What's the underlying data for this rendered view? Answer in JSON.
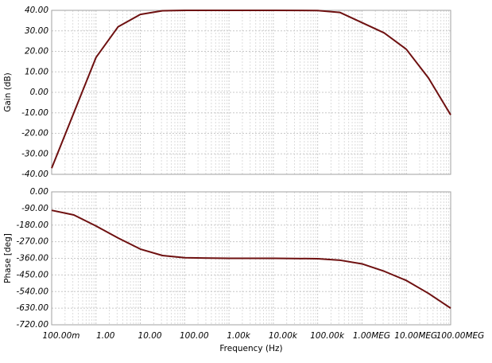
{
  "chart_data": [
    {
      "type": "line",
      "ylabel": "Gain (dB)",
      "xscale": "log",
      "grid": true,
      "x": [
        0.1,
        0.316,
        1,
        3.16,
        10,
        31.6,
        100,
        1000,
        10000,
        100000,
        316000,
        1000000,
        3160000,
        10000000,
        31600000,
        100000000
      ],
      "series": [
        {
          "color": "#6e1010",
          "values": [
            -37,
            -10,
            17,
            32,
            38,
            39.8,
            40,
            40,
            40,
            39.9,
            39,
            34,
            29,
            21,
            7,
            -11
          ]
        }
      ],
      "xlim": [
        0.1,
        100000000
      ],
      "xticks": [
        0.1,
        1,
        10,
        100,
        1000,
        10000,
        100000,
        1000000,
        10000000,
        100000000
      ],
      "ylim": [
        -40,
        40
      ],
      "yticks": [
        {
          "value": -40,
          "label": "-40.00"
        },
        {
          "value": -30,
          "label": "-30.00"
        },
        {
          "value": -20,
          "label": "-20.00"
        },
        {
          "value": -10,
          "label": "-10.00"
        },
        {
          "value": 0,
          "label": "0.00"
        },
        {
          "value": 10,
          "label": "10.00"
        },
        {
          "value": 20,
          "label": "20.00"
        },
        {
          "value": 30,
          "label": "30.00"
        },
        {
          "value": 40,
          "label": "40.00"
        }
      ]
    },
    {
      "type": "line",
      "ylabel": "Phase [deg]",
      "xlabel": "Frequency (Hz)",
      "xscale": "log",
      "grid": true,
      "x": [
        0.1,
        0.316,
        1,
        3.16,
        10,
        31.6,
        100,
        1000,
        10000,
        100000,
        316000,
        1000000,
        3160000,
        10000000,
        31600000,
        100000000
      ],
      "series": [
        {
          "color": "#6e1010",
          "values": [
            -100,
            -125,
            -185,
            -250,
            -310,
            -345,
            -357,
            -360,
            -360,
            -362,
            -370,
            -390,
            -430,
            -480,
            -550,
            -630
          ]
        }
      ],
      "xlim": [
        0.1,
        100000000
      ],
      "xticks": [
        {
          "value": 0.1,
          "label": "100.00m"
        },
        {
          "value": 1,
          "label": "1.00"
        },
        {
          "value": 10,
          "label": "10.00"
        },
        {
          "value": 100,
          "label": "100.00"
        },
        {
          "value": 1000,
          "label": "1.00k"
        },
        {
          "value": 10000,
          "label": "10.00k"
        },
        {
          "value": 100000,
          "label": "100.00k"
        },
        {
          "value": 1000000,
          "label": "1.00MEG"
        },
        {
          "value": 10000000,
          "label": "10.00MEG"
        },
        {
          "value": 100000000,
          "label": "100.00MEG"
        }
      ],
      "ylim": [
        -720,
        0
      ],
      "yticks": [
        {
          "value": -720,
          "label": "-720.00"
        },
        {
          "value": -630,
          "label": "-630.00"
        },
        {
          "value": -540,
          "label": "-540.00"
        },
        {
          "value": -450,
          "label": "-450.00"
        },
        {
          "value": -360,
          "label": "-360.00"
        },
        {
          "value": -270,
          "label": "-270.00"
        },
        {
          "value": -180,
          "label": "-180.00"
        },
        {
          "value": -90,
          "label": "-90.00"
        },
        {
          "value": 0,
          "label": "0.00"
        }
      ]
    }
  ]
}
